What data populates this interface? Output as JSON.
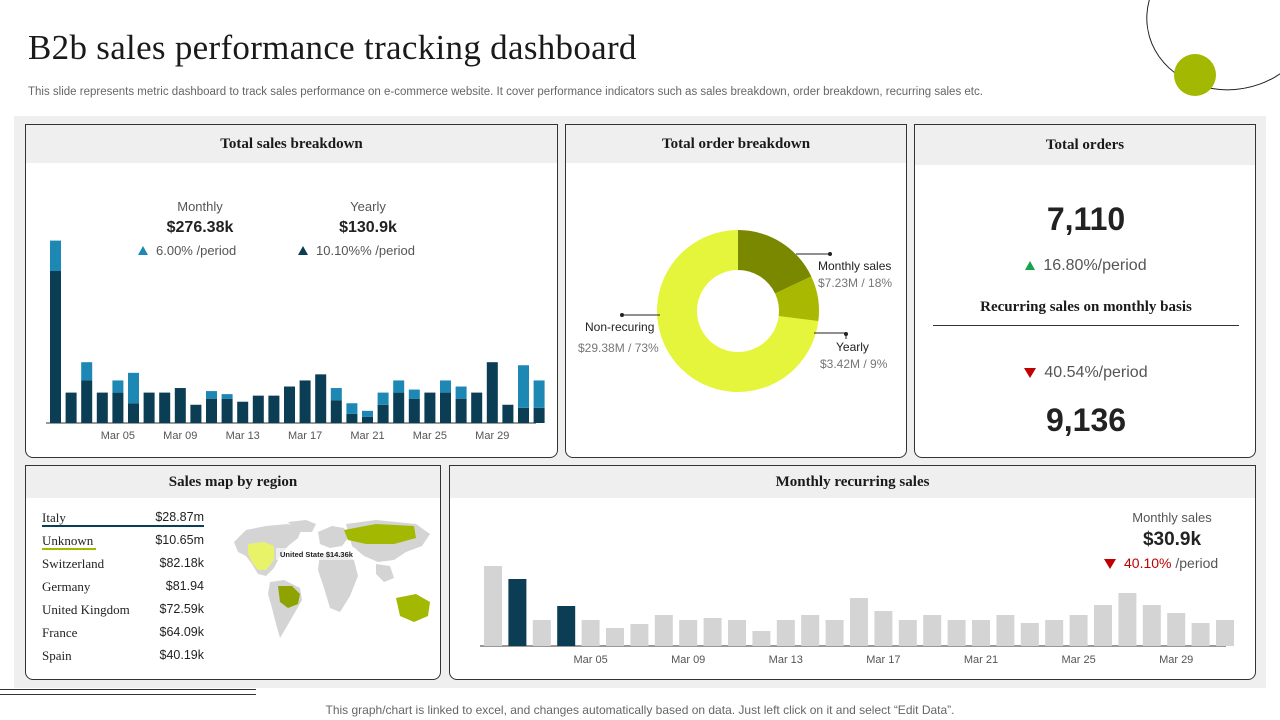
{
  "header": {
    "title": "B2b sales performance tracking dashboard",
    "subtitle": "This slide represents metric dashboard to track sales performance on e-commerce website. It cover performance indicators such as sales breakdown, order breakdown, recurring sales etc."
  },
  "colors": {
    "accent": "#a3b800",
    "dark_teal": "#0b3d55",
    "light_teal": "#1e88b4",
    "lime": "#e5f53c",
    "olive": "#7a8800",
    "green": "#a9b800",
    "grey_bar": "#d4d4d4",
    "up": "#1aa34a",
    "down": "#c00000"
  },
  "sales_breakdown": {
    "title": "Total sales breakdown",
    "monthly_label": "Monthly",
    "monthly_value": "$276.38k",
    "monthly_delta": "6.00% /period",
    "yearly_label": "Yearly",
    "yearly_value": "$130.9k",
    "yearly_delta": "10.10%% /period"
  },
  "order_breakdown": {
    "title": "Total order breakdown",
    "monthly_label": "Monthly sales",
    "monthly_sub": "$7.23M / 18%",
    "yearly_label": "Yearly",
    "yearly_sub": "$3.42M / 9%",
    "nonrec_label": "Non-recuring",
    "nonrec_sub": "$29.38M / 73%"
  },
  "total_orders": {
    "title": "Total orders",
    "value": "7,110",
    "delta": "16.80%/period",
    "recurring_title": "Recurring  sales on monthly  basis",
    "recurring_delta": "40.54%/period",
    "recurring_value": "9,136"
  },
  "region": {
    "title": "Sales map by region",
    "tooltip": "United State $14.36k",
    "rows": [
      {
        "name": "Italy",
        "value": "$28.87m"
      },
      {
        "name": "Unknown",
        "value": "$10.65m"
      },
      {
        "name": "Switzerland",
        "value": "$82.18k"
      },
      {
        "name": "Germany",
        "value": "$81.94"
      },
      {
        "name": "United Kingdom",
        "value": "$72.59k"
      },
      {
        "name": "France",
        "value": "$64.09k"
      },
      {
        "name": "Spain",
        "value": "$40.19k"
      }
    ]
  },
  "recurring": {
    "title": "Monthly recurring  sales",
    "label": "Monthly sales",
    "value": "$30.9k",
    "delta_pct": "40.10%",
    "delta_suffix": " /period"
  },
  "footer": {
    "text": "This graph/chart is linked to excel,  and changes automatically based on data. Just left click on it and select “Edit Data”."
  },
  "chart_data": [
    {
      "type": "bar",
      "stacked": true,
      "x_tick_labels": [
        "Mar 05",
        "Mar 09",
        "Mar 13",
        "Mar 17",
        "Mar 21",
        "Mar 25",
        "Mar 29"
      ],
      "tick_every": 4,
      "tick_offset": 4,
      "series": [
        {
          "values": [
            100,
            20,
            28,
            20,
            20,
            13,
            20,
            20,
            23,
            12,
            16,
            16,
            14,
            18,
            18,
            24,
            28,
            32,
            15,
            6,
            4,
            12,
            20,
            16,
            20,
            20,
            16,
            20,
            40,
            12,
            10,
            10
          ]
        },
        {
          "values": [
            20,
            0,
            12,
            0,
            8,
            20,
            0,
            0,
            0,
            0,
            5,
            3,
            0,
            0,
            0,
            0,
            0,
            0,
            8,
            7,
            4,
            8,
            8,
            6,
            0,
            8,
            8,
            0,
            0,
            0,
            28,
            18
          ]
        }
      ],
      "ylim": [
        0,
        125
      ],
      "grid": false
    },
    {
      "type": "pie",
      "donut": true,
      "slices": [
        {
          "label": "Monthly sales",
          "value": 18
        },
        {
          "label": "Yearly",
          "value": 9
        },
        {
          "label": "Non-recuring",
          "value": 73
        }
      ]
    },
    {
      "type": "bar",
      "x_tick_labels": [
        "Mar 05",
        "Mar 09",
        "Mar 13",
        "Mar 17",
        "Mar 21",
        "Mar 25",
        "Mar 29"
      ],
      "tick_every": 4,
      "tick_offset": 4,
      "values": [
        80,
        67,
        26,
        40,
        26,
        18,
        22,
        31,
        26,
        28,
        26,
        15,
        26,
        31,
        26,
        48,
        35,
        26,
        31,
        26,
        26,
        31,
        23,
        26,
        31,
        41,
        53,
        41,
        33,
        23,
        26
      ],
      "highlight": [
        1,
        3
      ],
      "ylim": [
        0,
        90
      ],
      "grid": false
    }
  ]
}
